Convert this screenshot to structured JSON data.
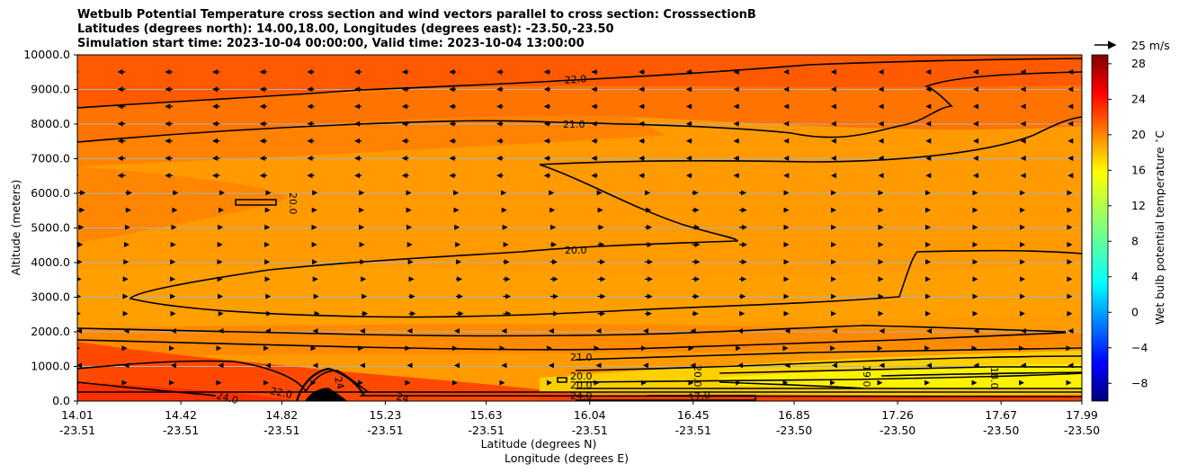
{
  "title_lines": [
    "Wetbulb Potential Temperature cross section and wind vectors parallel to cross section: CrosssectionB",
    "Latitudes (degrees north): 14.00,18.00, Longitudes (degrees east): -23.50,-23.50",
    "Simulation start time: 2023-10-04 00:00:00, Valid time: 2023-10-04 13:00:00"
  ],
  "chart_data": {
    "type": "heatmap",
    "ylabel": "Altitude (meters)",
    "xlabel_line1": "Latitude (degrees N)",
    "xlabel_line2": "Longitude (degrees E)",
    "y_ticks": [
      "0.0",
      "1000.0",
      "2000.0",
      "3000.0",
      "4000.0",
      "5000.0",
      "6000.0",
      "7000.0",
      "8000.0",
      "9000.0",
      "10000.0"
    ],
    "ylim": [
      0,
      10000
    ],
    "x_ticks": [
      {
        "lat": "14.01",
        "lon": "-23.51"
      },
      {
        "lat": "14.42",
        "lon": "-23.51"
      },
      {
        "lat": "14.82",
        "lon": "-23.51"
      },
      {
        "lat": "15.23",
        "lon": "-23.51"
      },
      {
        "lat": "15.63",
        "lon": "-23.51"
      },
      {
        "lat": "16.04",
        "lon": "-23.51"
      },
      {
        "lat": "16.45",
        "lon": "-23.51"
      },
      {
        "lat": "16.85",
        "lon": "-23.50"
      },
      {
        "lat": "17.26",
        "lon": "-23.50"
      },
      {
        "lat": "17.67",
        "lon": "-23.50"
      },
      {
        "lat": "17.99",
        "lon": "-23.50"
      }
    ],
    "xlim_lat": [
      14.01,
      17.99
    ],
    "grid": true,
    "colorbar": {
      "label": "Wet bulb potential temperature $^\\circ$C",
      "ticks": [
        "28",
        "24",
        "20",
        "16",
        "12",
        "8",
        "4",
        "0",
        "−4",
        "−8"
      ],
      "range": [
        -10,
        29
      ]
    },
    "wind_key": {
      "label": "25 m/s"
    },
    "contour_labels": [
      "22.0",
      "21.0",
      "20.0",
      "20.0",
      "21.0",
      "20.0",
      "20.0",
      "24.0",
      "22.0",
      "24",
      "24",
      "24.0",
      "20.0",
      "19.0",
      "18.0",
      "17.0"
    ]
  }
}
